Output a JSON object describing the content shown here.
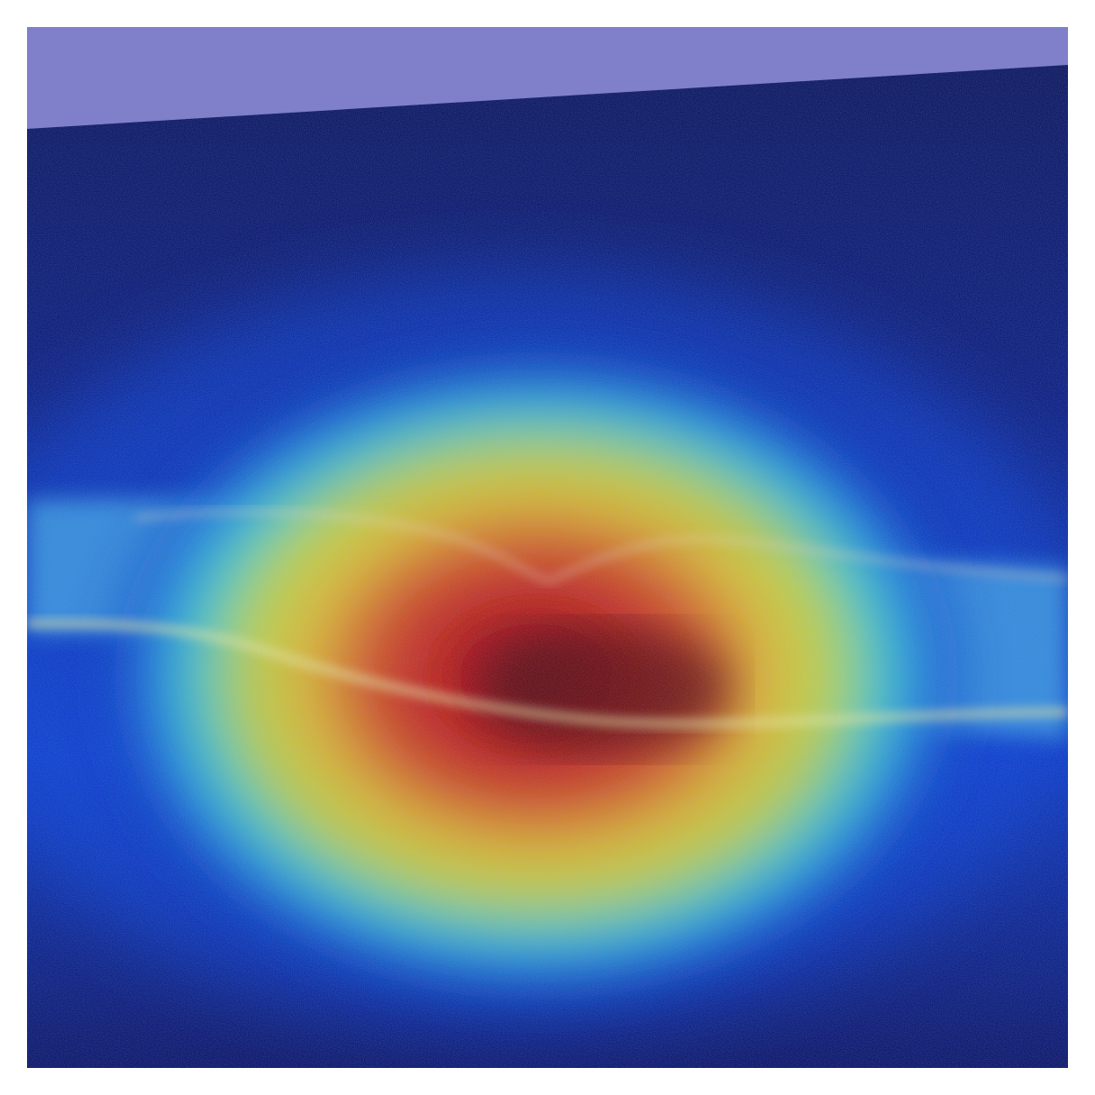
{
  "image": {
    "kind": "oct-retina-scan-with-attention-heatmap",
    "colors": {
      "page_background": "#ffffff",
      "top_band": "#7f7fca",
      "background": "#00106a",
      "retina_band": "#3aa0e0",
      "heatmap_colormap": [
        "#00007f",
        "#0000ff",
        "#00ffff",
        "#ffff00",
        "#ff0000",
        "#7f0000"
      ]
    }
  }
}
